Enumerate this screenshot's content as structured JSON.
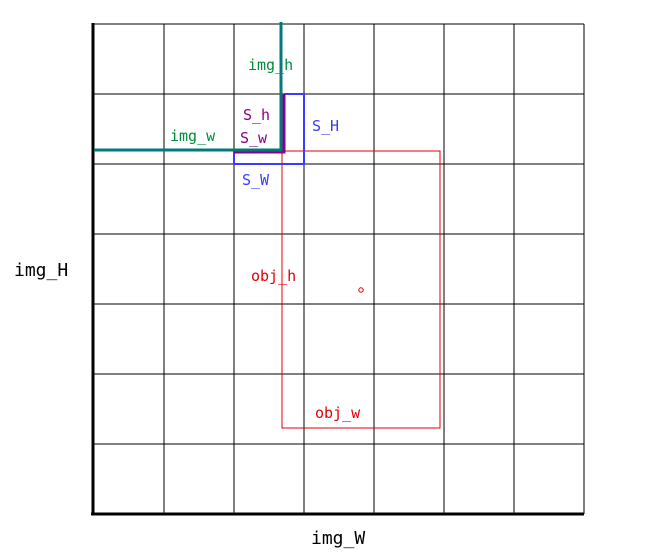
{
  "labels": {
    "img_H": "img_H",
    "img_W": "img_W",
    "img_h": "img_h",
    "img_w": "img_w",
    "S_h": "S_h",
    "S_w": "S_w",
    "S_H": "S_H",
    "S_W": "S_W",
    "obj_h": "obj_h",
    "obj_w": "obj_w"
  },
  "grid": {
    "rows": 7,
    "cols": 7
  },
  "colors": {
    "axis": "#000000",
    "grid": "#000000",
    "img_small": "#007a7a",
    "img_small_text": "#008c3a",
    "stride_small": "#8b008b",
    "stride_large": "#3b3bff",
    "object": "#e0000a"
  }
}
